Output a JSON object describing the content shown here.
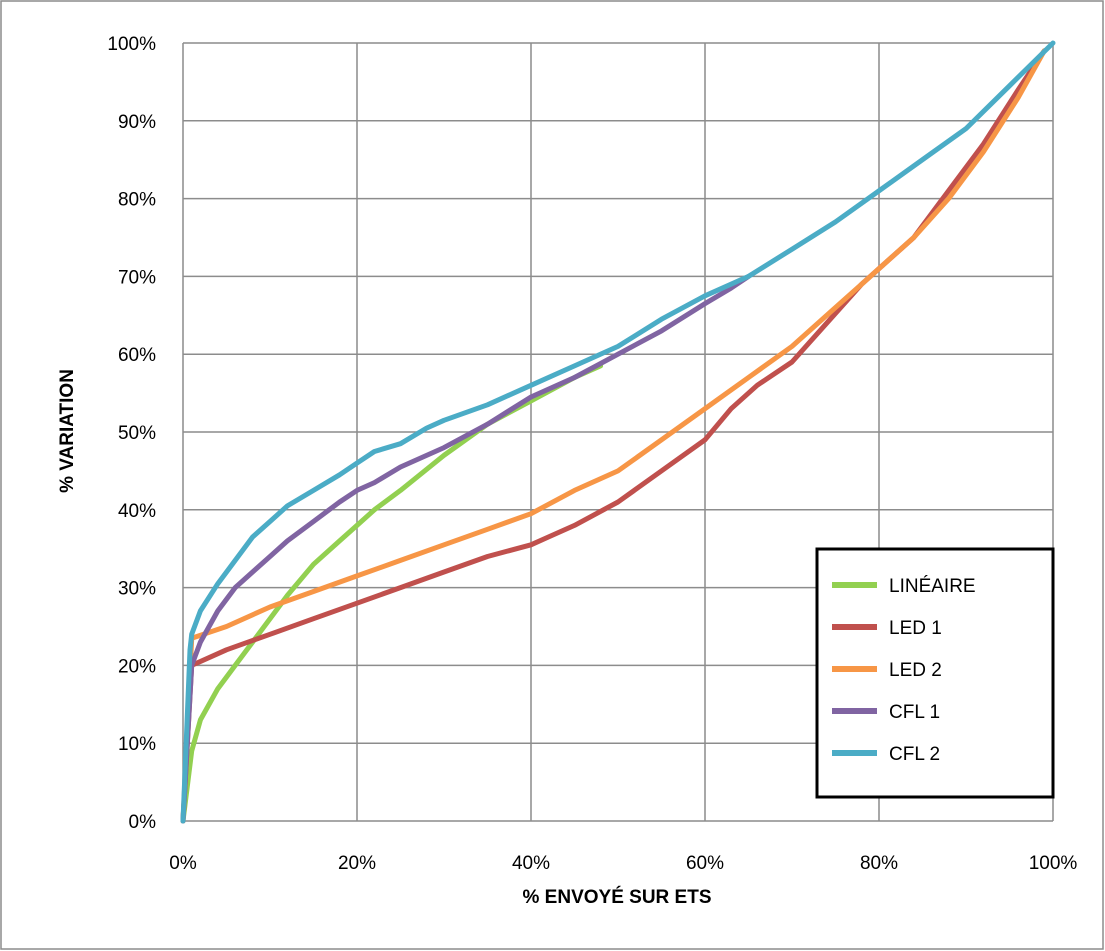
{
  "chart_data": {
    "type": "line",
    "xlabel": "% ENVOYÉ SUR ETS",
    "ylabel": "% VARIATION",
    "xlim": [
      0,
      100
    ],
    "ylim": [
      0,
      100
    ],
    "x_ticks": [
      "0%",
      "20%",
      "40%",
      "60%",
      "80%",
      "100%"
    ],
    "y_ticks": [
      "0%",
      "10%",
      "20%",
      "30%",
      "40%",
      "50%",
      "60%",
      "70%",
      "80%",
      "90%",
      "100%"
    ],
    "grid": true,
    "legend_position": "bottom-right",
    "series": [
      {
        "name": "LINÉAIRE",
        "color": "#92d050",
        "points": [
          [
            0,
            0
          ],
          [
            1,
            9
          ],
          [
            2,
            13
          ],
          [
            4,
            17
          ],
          [
            6,
            20
          ],
          [
            8,
            23
          ],
          [
            10,
            26
          ],
          [
            12,
            29
          ],
          [
            15,
            33
          ],
          [
            18,
            36
          ],
          [
            20,
            38
          ],
          [
            22,
            40
          ],
          [
            25,
            42.5
          ],
          [
            30,
            47
          ],
          [
            35,
            51
          ],
          [
            40,
            54
          ],
          [
            45,
            57
          ],
          [
            48,
            58.5
          ]
        ]
      },
      {
        "name": "LED 1",
        "color": "#c0504d",
        "points": [
          [
            0,
            0
          ],
          [
            1,
            20
          ],
          [
            5,
            22
          ],
          [
            10,
            24
          ],
          [
            15,
            26
          ],
          [
            20,
            28
          ],
          [
            25,
            30
          ],
          [
            30,
            32
          ],
          [
            35,
            34
          ],
          [
            40,
            35.5
          ],
          [
            42,
            36.5
          ],
          [
            45,
            38
          ],
          [
            50,
            41
          ],
          [
            55,
            45
          ],
          [
            60,
            49
          ],
          [
            63,
            53
          ],
          [
            66,
            56
          ],
          [
            70,
            59
          ],
          [
            74,
            64
          ],
          [
            78,
            69
          ],
          [
            80,
            71
          ],
          [
            84,
            75
          ],
          [
            88,
            81
          ],
          [
            92,
            87
          ],
          [
            96,
            94
          ],
          [
            99,
            99
          ]
        ]
      },
      {
        "name": "LED 2",
        "color": "#f79646",
        "points": [
          [
            0,
            0
          ],
          [
            1,
            23.5
          ],
          [
            5,
            25
          ],
          [
            10,
            27.5
          ],
          [
            15,
            29.5
          ],
          [
            20,
            31.5
          ],
          [
            25,
            33.5
          ],
          [
            30,
            35.5
          ],
          [
            35,
            37.5
          ],
          [
            40,
            39.5
          ],
          [
            45,
            42.5
          ],
          [
            50,
            45
          ],
          [
            55,
            49
          ],
          [
            60,
            53
          ],
          [
            65,
            57
          ],
          [
            70,
            61
          ],
          [
            75,
            66
          ],
          [
            78,
            69
          ],
          [
            80,
            71
          ],
          [
            84,
            75
          ],
          [
            88,
            80
          ],
          [
            92,
            86
          ],
          [
            96,
            93
          ],
          [
            99,
            99
          ]
        ]
      },
      {
        "name": "CFL 1",
        "color": "#8064a2",
        "points": [
          [
            0,
            0
          ],
          [
            1,
            20
          ],
          [
            2,
            23
          ],
          [
            4,
            27
          ],
          [
            6,
            30
          ],
          [
            8,
            32
          ],
          [
            10,
            34
          ],
          [
            12,
            36
          ],
          [
            15,
            38.5
          ],
          [
            18,
            41
          ],
          [
            20,
            42.5
          ],
          [
            22,
            43.5
          ],
          [
            25,
            45.5
          ],
          [
            30,
            48
          ],
          [
            35,
            51
          ],
          [
            40,
            54.5
          ],
          [
            45,
            57
          ],
          [
            50,
            60
          ],
          [
            55,
            63
          ],
          [
            60,
            66.5
          ],
          [
            63,
            68.5
          ],
          [
            65,
            70
          ]
        ]
      },
      {
        "name": "CFL 2",
        "color": "#4bacc6",
        "points": [
          [
            0,
            0
          ],
          [
            0.8,
            22
          ],
          [
            1,
            24
          ],
          [
            2,
            27
          ],
          [
            4,
            30.5
          ],
          [
            6,
            33.5
          ],
          [
            8,
            36.5
          ],
          [
            10,
            38.5
          ],
          [
            12,
            40.5
          ],
          [
            15,
            42.5
          ],
          [
            18,
            44.5
          ],
          [
            20,
            46
          ],
          [
            22,
            47.5
          ],
          [
            25,
            48.5
          ],
          [
            28,
            50.5
          ],
          [
            30,
            51.5
          ],
          [
            35,
            53.5
          ],
          [
            40,
            56
          ],
          [
            45,
            58.5
          ],
          [
            50,
            61
          ],
          [
            55,
            64.5
          ],
          [
            60,
            67.5
          ],
          [
            65,
            70
          ],
          [
            70,
            73.5
          ],
          [
            75,
            77
          ],
          [
            80,
            81
          ],
          [
            85,
            85
          ],
          [
            90,
            89
          ],
          [
            95,
            94.5
          ],
          [
            100,
            100
          ]
        ]
      }
    ]
  }
}
